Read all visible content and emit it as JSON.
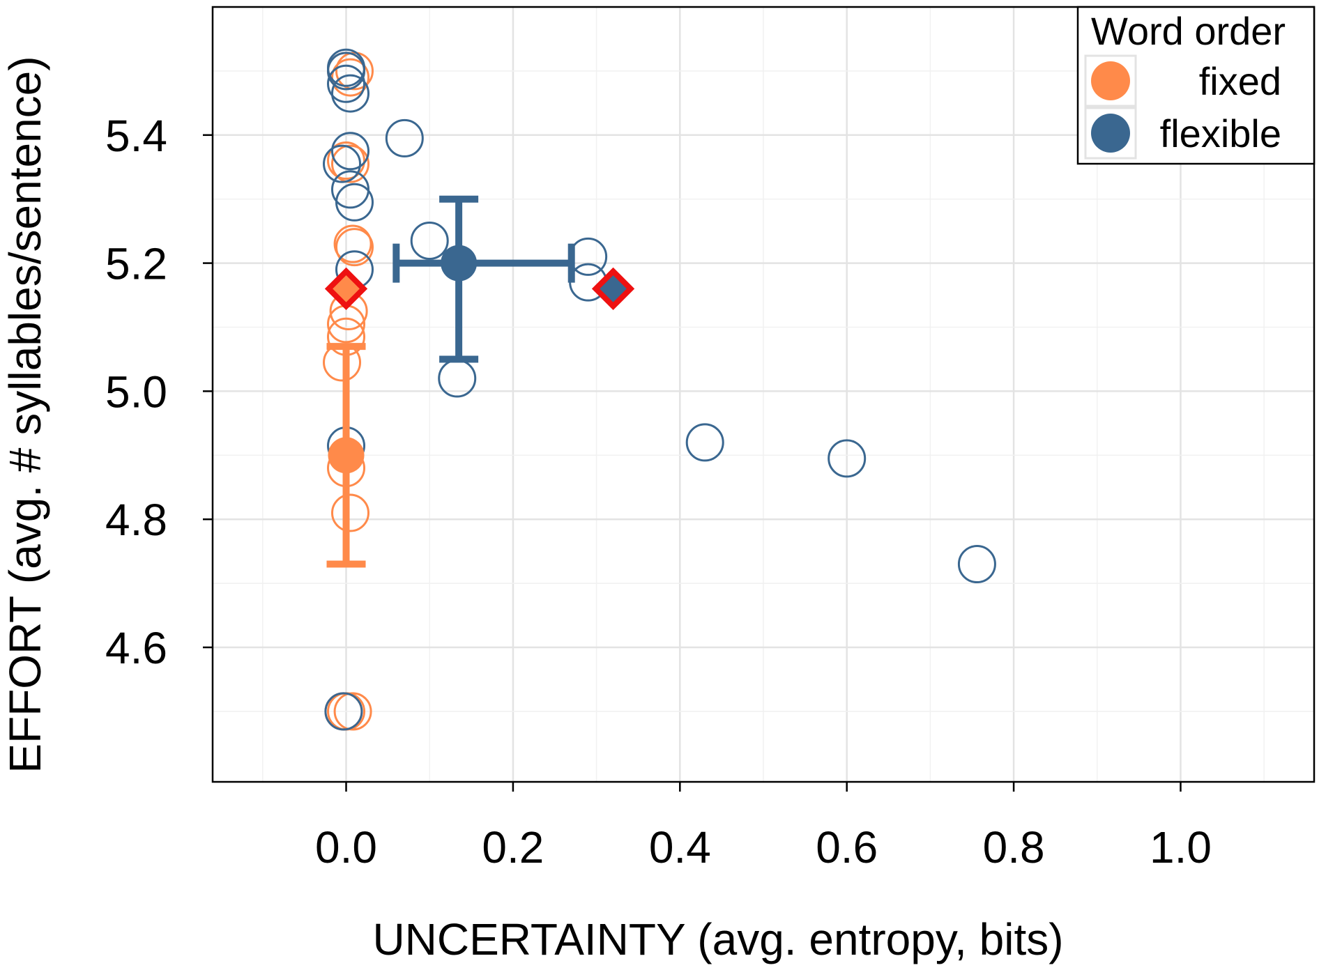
{
  "chart_data": {
    "type": "scatter",
    "xlabel": "UNCERTAINTY (avg. entropy, bits)",
    "ylabel": "EFFORT (avg. # syllables/sentence)",
    "xlim": [
      -0.16,
      1.16
    ],
    "ylim": [
      4.39,
      5.6
    ],
    "xticks": [
      0.0,
      0.2,
      0.4,
      0.6,
      0.8,
      1.0
    ],
    "xtick_labels": [
      "0.0",
      "0.2",
      "0.4",
      "0.6",
      "0.8",
      "1.0"
    ],
    "yticks": [
      4.6,
      4.8,
      5.0,
      5.2,
      5.4
    ],
    "ytick_labels": [
      "4.6",
      "4.8",
      "5.0",
      "5.2",
      "5.4"
    ],
    "grid": true,
    "legend": {
      "title": "Word order",
      "position": "top-right",
      "entries": [
        {
          "label": "fixed",
          "color": "#FF8A4A"
        },
        {
          "label": "flexible",
          "color": "#3A6790"
        }
      ]
    },
    "colors": {
      "fixed": "#FF8A4A",
      "flexible": "#3A6790",
      "highlight": "#EE1111",
      "grid": "#E3E3E3"
    },
    "series": [
      {
        "name": "fixed",
        "points": [
          {
            "x": 0.0,
            "y": 5.5
          },
          {
            "x": 0.01,
            "y": 5.5
          },
          {
            "x": 0.005,
            "y": 5.49
          },
          {
            "x": 0.005,
            "y": 5.355
          },
          {
            "x": 0.0,
            "y": 5.36
          },
          {
            "x": 0.008,
            "y": 5.23
          },
          {
            "x": 0.01,
            "y": 5.225
          },
          {
            "x": 0.003,
            "y": 5.125
          },
          {
            "x": 0.0,
            "y": 5.105
          },
          {
            "x": 0.0,
            "y": 5.085
          },
          {
            "x": -0.005,
            "y": 5.045
          },
          {
            "x": 0.0,
            "y": 4.88
          },
          {
            "x": 0.005,
            "y": 4.81
          },
          {
            "x": 0.0,
            "y": 4.5
          },
          {
            "x": 0.008,
            "y": 4.5
          },
          {
            "x": -0.003,
            "y": 4.5
          }
        ],
        "mean": {
          "x": 0.0,
          "y": 4.9,
          "y_err_low": 4.73,
          "y_err_high": 5.07
        },
        "highlight": {
          "x": 0.0,
          "y": 5.16
        }
      },
      {
        "name": "flexible",
        "points": [
          {
            "x": 0.0,
            "y": 5.505
          },
          {
            "x": 0.0,
            "y": 5.5
          },
          {
            "x": 0.0,
            "y": 5.48
          },
          {
            "x": 0.005,
            "y": 5.465
          },
          {
            "x": 0.07,
            "y": 5.395
          },
          {
            "x": 0.005,
            "y": 5.375
          },
          {
            "x": -0.005,
            "y": 5.355
          },
          {
            "x": 0.005,
            "y": 5.315
          },
          {
            "x": 0.01,
            "y": 5.295
          },
          {
            "x": 0.1,
            "y": 5.235
          },
          {
            "x": 0.01,
            "y": 5.19
          },
          {
            "x": 0.29,
            "y": 5.21
          },
          {
            "x": 0.29,
            "y": 5.17
          },
          {
            "x": 0.133,
            "y": 5.02
          },
          {
            "x": 0.0,
            "y": 4.915
          },
          {
            "x": 0.43,
            "y": 4.92
          },
          {
            "x": 0.6,
            "y": 4.895
          },
          {
            "x": 0.756,
            "y": 4.73
          },
          {
            "x": -0.003,
            "y": 4.5
          }
        ],
        "mean": {
          "x": 0.135,
          "y": 5.2,
          "x_err_low": 0.06,
          "x_err_high": 0.27,
          "y_err_low": 5.05,
          "y_err_high": 5.3
        },
        "highlight": {
          "x": 0.32,
          "y": 5.16
        }
      }
    ]
  }
}
